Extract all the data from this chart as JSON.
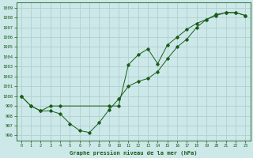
{
  "xlabel": "Graphe pression niveau de la mer (hPa)",
  "xlim": [
    -0.5,
    23.5
  ],
  "ylim": [
    995.5,
    1009.5
  ],
  "yticks": [
    996,
    997,
    998,
    999,
    1000,
    1001,
    1002,
    1003,
    1004,
    1005,
    1006,
    1007,
    1008,
    1009
  ],
  "xticks": [
    0,
    1,
    2,
    3,
    4,
    5,
    6,
    7,
    8,
    9,
    10,
    11,
    12,
    13,
    14,
    15,
    16,
    17,
    18,
    19,
    20,
    21,
    22,
    23
  ],
  "background_color": "#cce8e8",
  "grid_color": "#b0d0d0",
  "line_color": "#1a5c1a",
  "line1_x": [
    0,
    1,
    2,
    3,
    4,
    5,
    6,
    7,
    8,
    9,
    10,
    11,
    12,
    13,
    14,
    15,
    16,
    17,
    18,
    19,
    20,
    21,
    22,
    23
  ],
  "line1_y": [
    1000,
    999,
    998.5,
    998.5,
    998.2,
    997.2,
    996.5,
    996.3,
    997.3,
    998.6,
    999.7,
    1001.0,
    1001.5,
    1001.8,
    1002.5,
    1003.8,
    1005.0,
    1005.8,
    1007.0,
    1007.8,
    1008.3,
    1008.5,
    1008.5,
    1008.2
  ],
  "line2_x": [
    0,
    1,
    2,
    3,
    4,
    9,
    10,
    11,
    12,
    13,
    14,
    15,
    16,
    17,
    18,
    19,
    20,
    21,
    22,
    23
  ],
  "line2_y": [
    1000,
    999,
    998.5,
    999.0,
    999.0,
    999.0,
    999.0,
    1003.2,
    1004.2,
    1004.8,
    1003.3,
    1005.2,
    1006.0,
    1006.8,
    1007.4,
    1007.8,
    1008.2,
    1008.5,
    1008.5,
    1008.2
  ]
}
